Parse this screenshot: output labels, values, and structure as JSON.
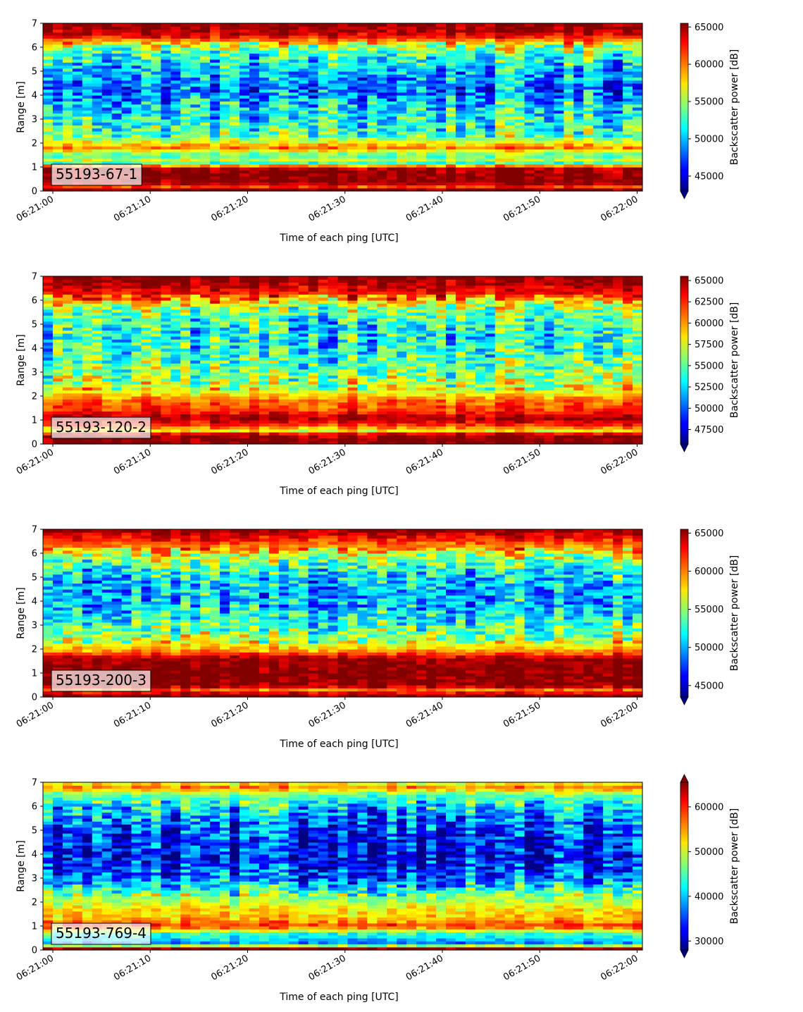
{
  "chart_data": [
    {
      "type": "heatmap",
      "label": "55193-67-1",
      "xlabel": "Time of each ping [UTC]",
      "ylabel": "Range [m]",
      "x_ticks": [
        "06:21:00",
        "06:21:10",
        "06:21:20",
        "06:21:30",
        "06:21:40",
        "06:21:50",
        "06:22:00"
      ],
      "y_ticks": [
        0,
        1,
        2,
        3,
        4,
        5,
        6,
        7
      ],
      "ylim": [
        0,
        7
      ],
      "colorbar": {
        "label": "Backscatter power [dB]",
        "colormap": "jet",
        "vmin": 43000,
        "vmax": 65500,
        "ticks": [
          45000,
          50000,
          55000,
          60000,
          65000
        ],
        "extend": "min"
      },
      "range_profile": [
        {
          "range": 0.1,
          "value": 65500
        },
        {
          "range": 0.2,
          "value": 61000
        },
        {
          "range": 0.35,
          "value": 65500
        },
        {
          "range": 0.6,
          "value": 65500
        },
        {
          "range": 1.0,
          "value": 64500
        },
        {
          "range": 1.15,
          "value": 52000
        },
        {
          "range": 1.3,
          "value": 56000
        },
        {
          "range": 1.5,
          "value": 53000
        },
        {
          "range": 1.8,
          "value": 60000
        },
        {
          "range": 2.0,
          "value": 57500
        },
        {
          "range": 2.3,
          "value": 53500
        },
        {
          "range": 3.0,
          "value": 52000
        },
        {
          "range": 3.6,
          "value": 50500
        },
        {
          "range": 4.3,
          "value": 48000
        },
        {
          "range": 5.0,
          "value": 50000
        },
        {
          "range": 5.6,
          "value": 52000
        },
        {
          "range": 6.1,
          "value": 56000
        },
        {
          "range": 6.5,
          "value": 63500
        },
        {
          "range": 7.0,
          "value": 65500
        }
      ]
    },
    {
      "type": "heatmap",
      "label": "55193-120-2",
      "xlabel": "Time of each ping [UTC]",
      "ylabel": "Range [m]",
      "x_ticks": [
        "06:21:00",
        "06:21:10",
        "06:21:20",
        "06:21:30",
        "06:21:40",
        "06:21:50",
        "06:22:00"
      ],
      "y_ticks": [
        0,
        1,
        2,
        3,
        4,
        5,
        6,
        7
      ],
      "ylim": [
        0,
        7
      ],
      "colorbar": {
        "label": "Backscatter power [dB]",
        "colormap": "jet",
        "vmin": 45800,
        "vmax": 65500,
        "ticks": [
          47500,
          50000,
          52500,
          55000,
          57500,
          60000,
          62500,
          65000
        ],
        "extend": "min"
      },
      "range_profile": [
        {
          "range": 0.1,
          "value": 65500
        },
        {
          "range": 0.4,
          "value": 65000
        },
        {
          "range": 0.55,
          "value": 58000
        },
        {
          "range": 0.8,
          "value": 62000
        },
        {
          "range": 1.1,
          "value": 65000
        },
        {
          "range": 1.4,
          "value": 62000
        },
        {
          "range": 1.8,
          "value": 61000
        },
        {
          "range": 2.2,
          "value": 57500
        },
        {
          "range": 3.0,
          "value": 55500
        },
        {
          "range": 3.8,
          "value": 54000
        },
        {
          "range": 4.5,
          "value": 53000
        },
        {
          "range": 5.2,
          "value": 54000
        },
        {
          "range": 5.8,
          "value": 57000
        },
        {
          "range": 6.3,
          "value": 63000
        },
        {
          "range": 7.0,
          "value": 65500
        }
      ]
    },
    {
      "type": "heatmap",
      "label": "55193-200-3",
      "xlabel": "Time of each ping [UTC]",
      "ylabel": "Range [m]",
      "x_ticks": [
        "06:21:00",
        "06:21:10",
        "06:21:20",
        "06:21:30",
        "06:21:40",
        "06:21:50",
        "06:22:00"
      ],
      "y_ticks": [
        0,
        1,
        2,
        3,
        4,
        5,
        6,
        7
      ],
      "ylim": [
        0,
        7
      ],
      "colorbar": {
        "label": "Backscatter power [dB]",
        "colormap": "jet",
        "vmin": 43500,
        "vmax": 65500,
        "ticks": [
          45000,
          50000,
          55000,
          60000,
          65000
        ],
        "extend": "min"
      },
      "range_profile": [
        {
          "range": 0.1,
          "value": 65500
        },
        {
          "range": 0.3,
          "value": 60000
        },
        {
          "range": 0.5,
          "value": 65500
        },
        {
          "range": 1.0,
          "value": 65500
        },
        {
          "range": 1.6,
          "value": 65000
        },
        {
          "range": 1.9,
          "value": 60000
        },
        {
          "range": 2.3,
          "value": 56000
        },
        {
          "range": 3.0,
          "value": 53000
        },
        {
          "range": 3.8,
          "value": 50500
        },
        {
          "range": 4.5,
          "value": 50000
        },
        {
          "range": 5.2,
          "value": 51500
        },
        {
          "range": 5.8,
          "value": 55000
        },
        {
          "range": 6.3,
          "value": 60000
        },
        {
          "range": 7.0,
          "value": 65500
        }
      ]
    },
    {
      "type": "heatmap",
      "label": "55193-769-4",
      "xlabel": "Time of each ping [UTC]",
      "ylabel": "Range [m]",
      "x_ticks": [
        "06:21:00",
        "06:21:10",
        "06:21:20",
        "06:21:30",
        "06:21:40",
        "06:21:50",
        "06:22:00"
      ],
      "y_ticks": [
        0,
        1,
        2,
        3,
        4,
        5,
        6,
        7
      ],
      "ylim": [
        0,
        7
      ],
      "colorbar": {
        "label": "Backscatter power [dB]",
        "colormap": "jet",
        "vmin": 28000,
        "vmax": 65500,
        "ticks": [
          30000,
          40000,
          50000,
          60000
        ],
        "extend": "both"
      },
      "range_profile": [
        {
          "range": 0.1,
          "value": 65000
        },
        {
          "range": 0.25,
          "value": 36000
        },
        {
          "range": 0.4,
          "value": 40000
        },
        {
          "range": 0.7,
          "value": 44000
        },
        {
          "range": 1.0,
          "value": 59000
        },
        {
          "range": 1.3,
          "value": 54000
        },
        {
          "range": 1.7,
          "value": 52000
        },
        {
          "range": 2.2,
          "value": 47000
        },
        {
          "range": 3.0,
          "value": 36000
        },
        {
          "range": 3.8,
          "value": 32000
        },
        {
          "range": 4.5,
          "value": 33000
        },
        {
          "range": 5.3,
          "value": 36000
        },
        {
          "range": 6.0,
          "value": 40000
        },
        {
          "range": 6.5,
          "value": 46000
        },
        {
          "range": 6.8,
          "value": 56000
        },
        {
          "range": 7.0,
          "value": 50000
        }
      ]
    }
  ]
}
